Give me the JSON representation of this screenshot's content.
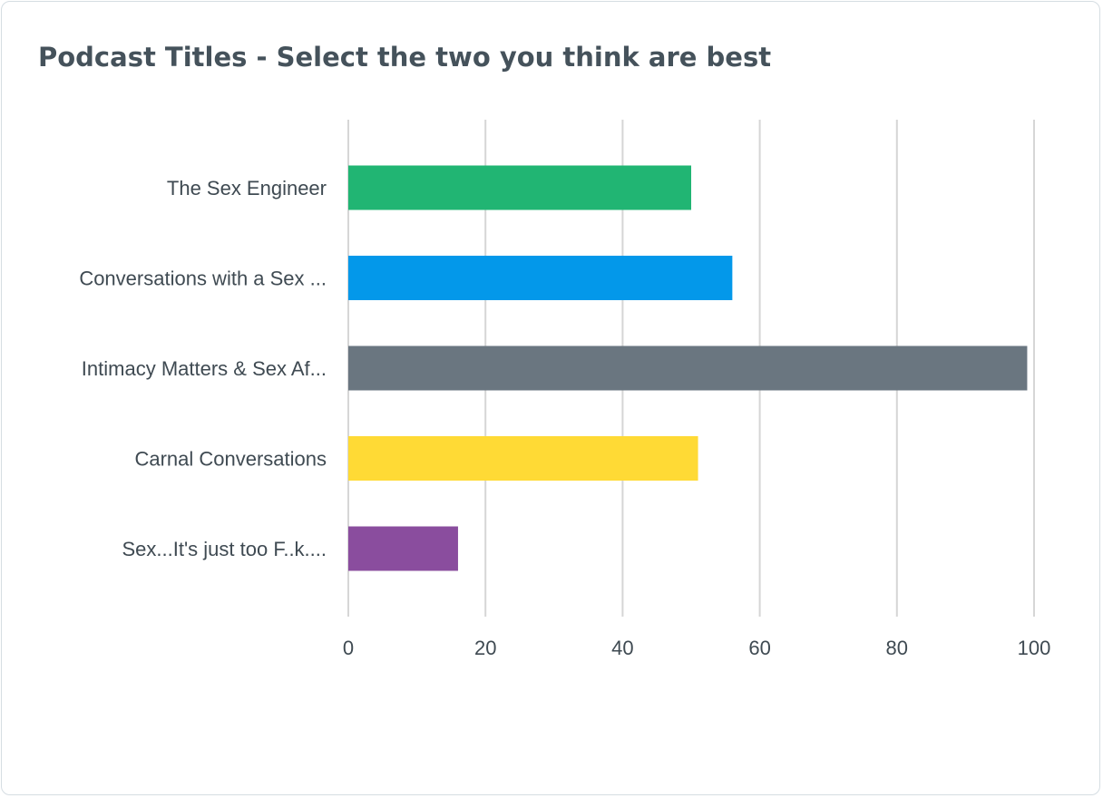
{
  "chart_data": {
    "type": "bar",
    "orientation": "horizontal",
    "title": "Podcast Titles - Select the two you think are best",
    "categories": [
      "The Sex Engineer",
      "Conversations with a Sex ...",
      "Intimacy Matters & Sex Af...",
      "Carnal Conversations",
      "Sex...It's just too F..k...."
    ],
    "values": [
      50,
      56,
      99,
      51,
      16
    ],
    "colors": [
      "#21b573",
      "#0398ea",
      "#6a7680",
      "#ffda35",
      "#8a4d9e"
    ],
    "xlim": [
      0,
      100
    ],
    "xticks": [
      0,
      20,
      40,
      60,
      80,
      100
    ],
    "xlabel": "",
    "ylabel": "",
    "grid": "vertical",
    "legend": "none"
  }
}
